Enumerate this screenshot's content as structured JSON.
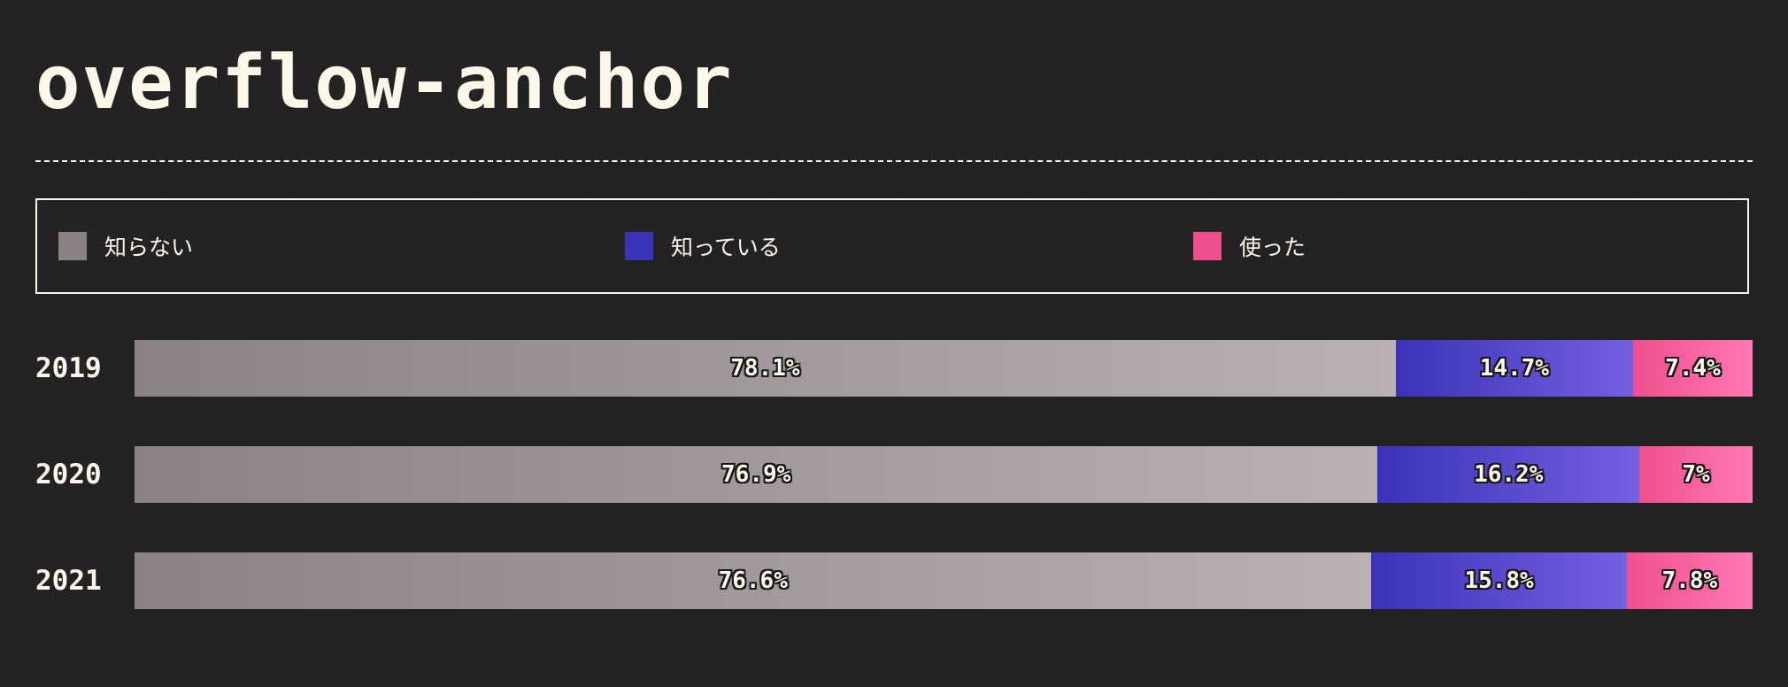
{
  "title": "overflow-anchor",
  "chart_data": {
    "type": "bar",
    "orientation": "horizontal",
    "stacked": true,
    "title": "overflow-anchor",
    "categories": [
      "2019",
      "2020",
      "2021"
    ],
    "series": [
      {
        "name": "知らない",
        "color": "#8a8187",
        "color_end": "#b9b0b2",
        "values": [
          78.1,
          76.9,
          76.6
        ],
        "labels": [
          "78.1%",
          "76.9%",
          "76.6%"
        ]
      },
      {
        "name": "知っている",
        "color": "#3a34b8",
        "color_end": "#7560e0",
        "values": [
          14.7,
          16.2,
          15.8
        ],
        "labels": [
          "14.7%",
          "16.2%",
          "15.8%"
        ]
      },
      {
        "name": "使った",
        "color": "#ef4f8e",
        "color_end": "#ff78b4",
        "values": [
          7.4,
          7,
          7.8
        ],
        "labels": [
          "7.4%",
          "7%",
          "7.8%"
        ]
      }
    ],
    "legend": "top",
    "grid": false
  }
}
